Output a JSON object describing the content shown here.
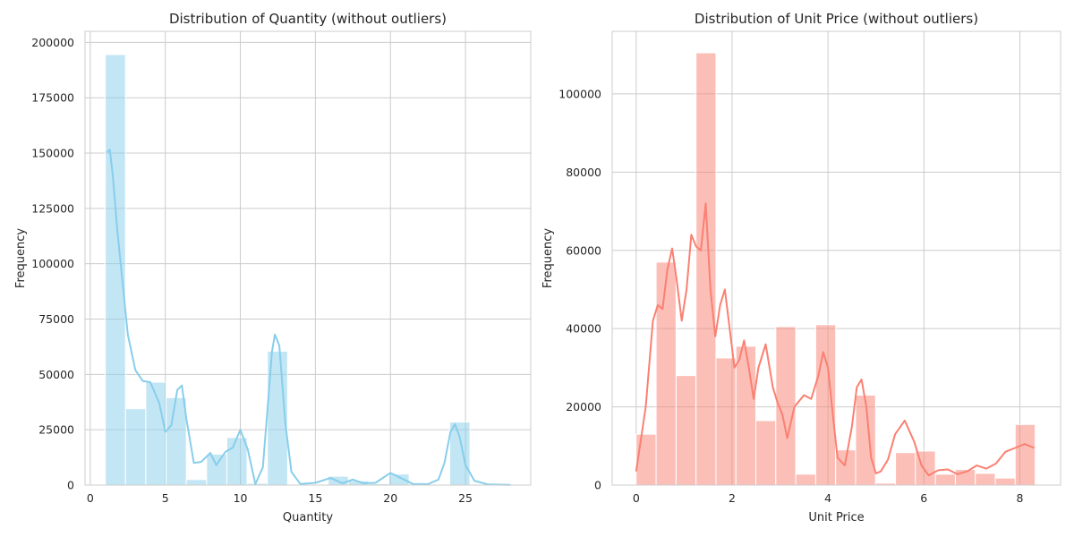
{
  "chart_data": [
    {
      "type": "bar",
      "title": "Distribution of Quantity (without outliers)",
      "xlabel": "Quantity",
      "ylabel": "Frequency",
      "xlim": [
        -0.35,
        29.35
      ],
      "ylim": [
        0,
        205000
      ],
      "xticks": [
        0,
        5,
        10,
        15,
        20,
        25
      ],
      "yticks": [
        0,
        25000,
        50000,
        75000,
        100000,
        125000,
        150000,
        175000,
        200000
      ],
      "bar_color": "#87ceeb",
      "bins": [
        {
          "x0": 1.0,
          "x1": 2.35,
          "value": 194500
        },
        {
          "x0": 2.35,
          "x1": 3.7,
          "value": 34500
        },
        {
          "x0": 3.7,
          "x1": 5.05,
          "value": 46500
        },
        {
          "x0": 5.05,
          "x1": 6.4,
          "value": 39500
        },
        {
          "x0": 6.4,
          "x1": 7.75,
          "value": 2500
        },
        {
          "x0": 7.75,
          "x1": 9.1,
          "value": 14000
        },
        {
          "x0": 9.1,
          "x1": 10.45,
          "value": 21500
        },
        {
          "x0": 10.45,
          "x1": 11.8,
          "value": 800
        },
        {
          "x0": 11.8,
          "x1": 13.15,
          "value": 60500
        },
        {
          "x0": 13.15,
          "x1": 14.5,
          "value": 0
        },
        {
          "x0": 14.5,
          "x1": 15.85,
          "value": 300
        },
        {
          "x0": 15.85,
          "x1": 17.2,
          "value": 4000
        },
        {
          "x0": 17.2,
          "x1": 18.55,
          "value": 2000
        },
        {
          "x0": 18.55,
          "x1": 19.9,
          "value": 600
        },
        {
          "x0": 19.9,
          "x1": 21.25,
          "value": 5000
        },
        {
          "x0": 21.25,
          "x1": 22.6,
          "value": 0
        },
        {
          "x0": 22.6,
          "x1": 23.95,
          "value": 300
        },
        {
          "x0": 23.95,
          "x1": 25.3,
          "value": 28500
        },
        {
          "x0": 25.3,
          "x1": 26.65,
          "value": 0
        },
        {
          "x0": 26.65,
          "x1": 28.0,
          "value": 100
        }
      ],
      "kde": {
        "color": "#87ceeb",
        "x": [
          1.1,
          1.3,
          1.5,
          1.8,
          2.1,
          2.5,
          3.0,
          3.5,
          4.0,
          4.6,
          5.0,
          5.4,
          5.8,
          6.1,
          6.4,
          6.9,
          7.4,
          8.0,
          8.4,
          9.0,
          9.5,
          10.0,
          10.5,
          11.0,
          11.5,
          11.9,
          12.1,
          12.3,
          12.6,
          13.0,
          13.4,
          14.0,
          15.0,
          16.0,
          16.8,
          17.5,
          18.2,
          19.0,
          20.0,
          20.6,
          21.5,
          22.5,
          23.2,
          23.6,
          24.0,
          24.3,
          24.6,
          25.0,
          25.6,
          26.5,
          28.0
        ],
        "y": [
          150500,
          151500,
          140000,
          115000,
          95000,
          68000,
          52000,
          47000,
          46500,
          37000,
          24000,
          27000,
          43000,
          45000,
          30000,
          10000,
          10500,
          14500,
          9000,
          15000,
          17000,
          25000,
          16000,
          500,
          8000,
          42000,
          60000,
          68000,
          63000,
          28000,
          6000,
          500,
          1000,
          3200,
          800,
          2500,
          800,
          1000,
          5500,
          3500,
          500,
          400,
          2500,
          10000,
          24000,
          27500,
          22000,
          9000,
          2000,
          300,
          100
        ]
      }
    },
    {
      "type": "bar",
      "title": "Distribution of Unit Price (without outliers)",
      "xlabel": "Unit Price",
      "ylabel": "Frequency",
      "xlim": [
        -0.5,
        8.85
      ],
      "ylim": [
        0,
        116000
      ],
      "xticks": [
        0,
        2,
        4,
        6,
        8
      ],
      "yticks": [
        0,
        20000,
        40000,
        60000,
        80000,
        100000
      ],
      "bar_color": "#fa8072",
      "bins": [
        {
          "x0": 0.0,
          "x1": 0.416,
          "value": 13000
        },
        {
          "x0": 0.416,
          "x1": 0.832,
          "value": 57000
        },
        {
          "x0": 0.832,
          "x1": 1.248,
          "value": 28000
        },
        {
          "x0": 1.248,
          "x1": 1.664,
          "value": 110500
        },
        {
          "x0": 1.664,
          "x1": 2.08,
          "value": 32500
        },
        {
          "x0": 2.08,
          "x1": 2.496,
          "value": 35500
        },
        {
          "x0": 2.496,
          "x1": 2.912,
          "value": 16500
        },
        {
          "x0": 2.912,
          "x1": 3.328,
          "value": 40500
        },
        {
          "x0": 3.328,
          "x1": 3.744,
          "value": 2800
        },
        {
          "x0": 3.744,
          "x1": 4.16,
          "value": 41000
        },
        {
          "x0": 4.16,
          "x1": 4.576,
          "value": 9000
        },
        {
          "x0": 4.576,
          "x1": 4.992,
          "value": 23000
        },
        {
          "x0": 4.992,
          "x1": 5.408,
          "value": 500
        },
        {
          "x0": 5.408,
          "x1": 5.824,
          "value": 8300
        },
        {
          "x0": 5.824,
          "x1": 6.24,
          "value": 8700
        },
        {
          "x0": 6.24,
          "x1": 6.656,
          "value": 2800
        },
        {
          "x0": 6.656,
          "x1": 7.072,
          "value": 4000
        },
        {
          "x0": 7.072,
          "x1": 7.488,
          "value": 3000
        },
        {
          "x0": 7.488,
          "x1": 7.904,
          "value": 1800
        },
        {
          "x0": 7.904,
          "x1": 8.32,
          "value": 15500
        }
      ],
      "kde": {
        "color": "#fa8072",
        "x": [
          0.0,
          0.2,
          0.35,
          0.45,
          0.55,
          0.65,
          0.75,
          0.85,
          0.95,
          1.05,
          1.15,
          1.25,
          1.35,
          1.45,
          1.55,
          1.65,
          1.75,
          1.85,
          1.95,
          2.05,
          2.15,
          2.25,
          2.35,
          2.45,
          2.55,
          2.7,
          2.85,
          2.95,
          3.05,
          3.15,
          3.3,
          3.5,
          3.65,
          3.8,
          3.9,
          4.0,
          4.1,
          4.2,
          4.35,
          4.5,
          4.6,
          4.7,
          4.8,
          4.9,
          5.0,
          5.1,
          5.25,
          5.4,
          5.6,
          5.8,
          5.95,
          6.1,
          6.3,
          6.5,
          6.7,
          6.9,
          7.1,
          7.3,
          7.5,
          7.7,
          7.9,
          8.1,
          8.3
        ],
        "y": [
          3500,
          20000,
          42000,
          46000,
          45000,
          55000,
          60500,
          52000,
          42000,
          50000,
          64000,
          61000,
          60000,
          72000,
          50000,
          38000,
          46000,
          50000,
          40000,
          30000,
          32000,
          37000,
          30000,
          22000,
          30000,
          36000,
          25000,
          21000,
          18000,
          12000,
          20000,
          23000,
          22000,
          28000,
          34000,
          30000,
          18000,
          7000,
          5000,
          15000,
          25000,
          27000,
          20000,
          7000,
          3000,
          3500,
          6500,
          13000,
          16500,
          11000,
          5000,
          2500,
          3800,
          4000,
          2800,
          3500,
          5000,
          4200,
          5500,
          8500,
          9500,
          10500,
          9500
        ]
      }
    }
  ]
}
